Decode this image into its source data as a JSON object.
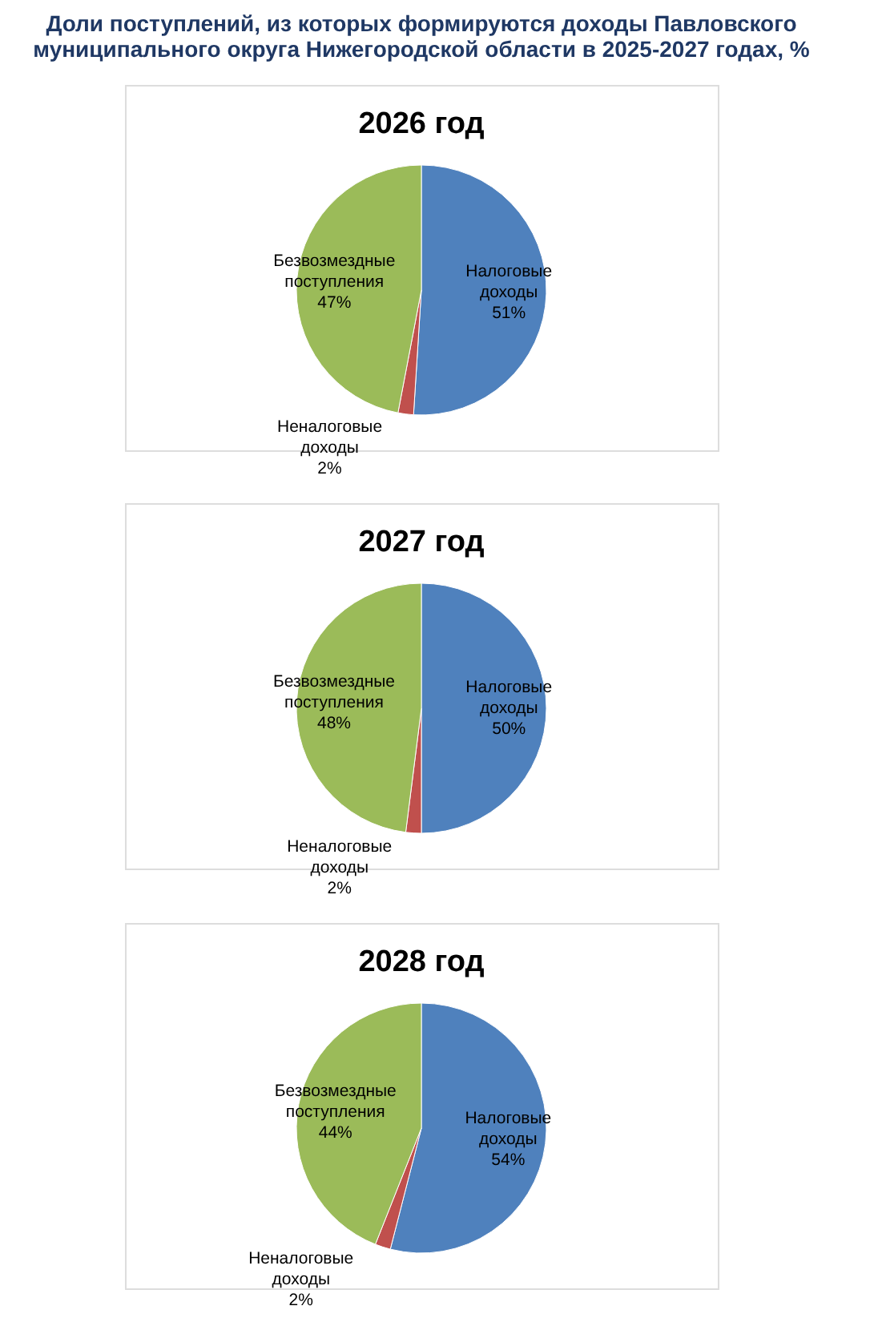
{
  "chart_data": [
    {
      "type": "pie",
      "title": "2026 год",
      "annotations": [
        "Доли поступлений,  из которых формируются доходы  Павловского\nмуниципального округа Нижегородской области  в 2025-2027 годах, %"
      ],
      "categories": [
        "Налоговые доходы",
        "Неналоговые доходы",
        "Безвозмездные поступления"
      ],
      "values": [
        51,
        2,
        47
      ],
      "value_labels": [
        "51%",
        "2%",
        "47%"
      ],
      "colors": [
        "#4f81bd",
        "#c0504d",
        "#9bbb59"
      ],
      "legend": false
    },
    {
      "type": "pie",
      "title": "2027 год",
      "categories": [
        "Налоговые доходы",
        "Неналоговые доходы",
        "Безвозмездные поступления"
      ],
      "values": [
        50,
        2,
        48
      ],
      "value_labels": [
        "50%",
        "2%",
        "48%"
      ],
      "colors": [
        "#4f81bd",
        "#c0504d",
        "#9bbb59"
      ],
      "legend": false
    },
    {
      "type": "pie",
      "title": "2028 год",
      "categories": [
        "Налоговые доходы",
        "Неналоговые доходы",
        "Безвозмездные поступления"
      ],
      "values": [
        54,
        2,
        44
      ],
      "value_labels": [
        "54%",
        "2%",
        "44%"
      ],
      "colors": [
        "#4f81bd",
        "#c0504d",
        "#9bbb59"
      ],
      "legend": false
    }
  ]
}
